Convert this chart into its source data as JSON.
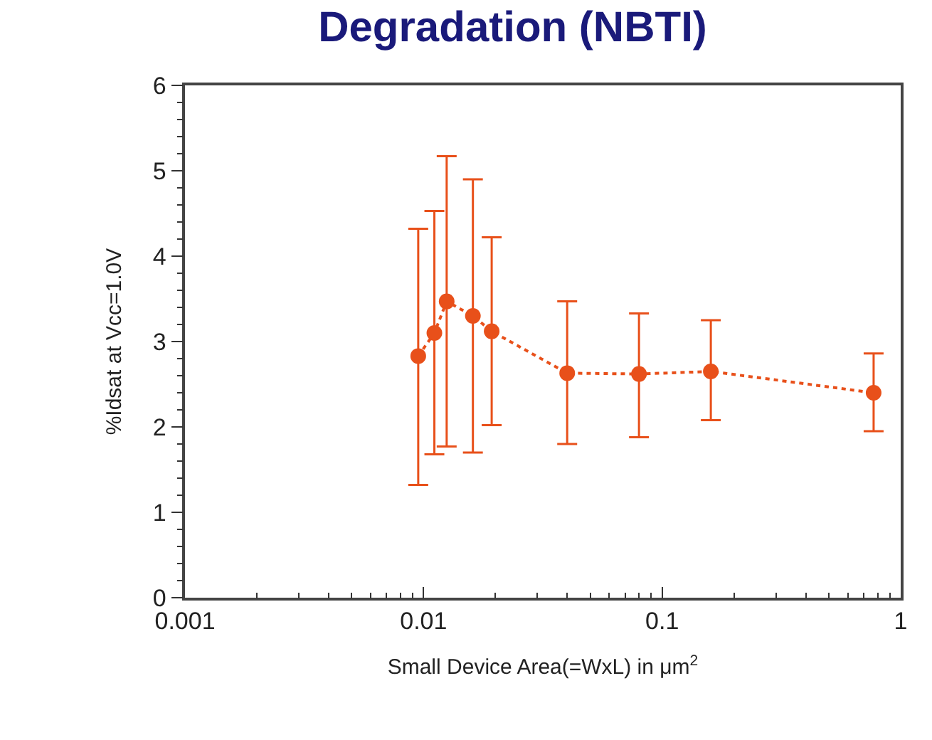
{
  "chart_data": {
    "type": "line",
    "title": "Degradation (NBTI)",
    "xlabel": "Small Device Area(=WxL) in μm$^{2}$",
    "ylabel": "%Idsat at Vcc=1.0V",
    "x": [
      0.0095,
      0.0111,
      0.0125,
      0.0161,
      0.0193,
      0.04,
      0.08,
      0.16,
      0.77
    ],
    "series": [
      {
        "color": "#e8501a",
        "values": [
          2.83,
          3.1,
          3.47,
          3.3,
          3.12,
          2.63,
          2.62,
          2.65,
          2.4
        ],
        "errors": [
          [
            1.32,
            4.32
          ],
          [
            1.68,
            4.53
          ],
          [
            1.77,
            5.17
          ],
          [
            1.7,
            4.9
          ],
          [
            2.02,
            4.22
          ],
          [
            1.8,
            3.47
          ],
          [
            1.88,
            3.33
          ],
          [
            2.08,
            3.25
          ],
          [
            1.95,
            2.86
          ]
        ]
      }
    ],
    "log": "x",
    "xlim": [
      0.001,
      1
    ],
    "xticks": [
      0.001,
      0.01,
      0.1,
      1
    ],
    "ylim": [
      0,
      6
    ],
    "yticks": [
      0,
      1,
      2,
      3,
      4,
      5,
      6
    ],
    "grid": false,
    "marker": "circle",
    "line_style": "dotted"
  }
}
